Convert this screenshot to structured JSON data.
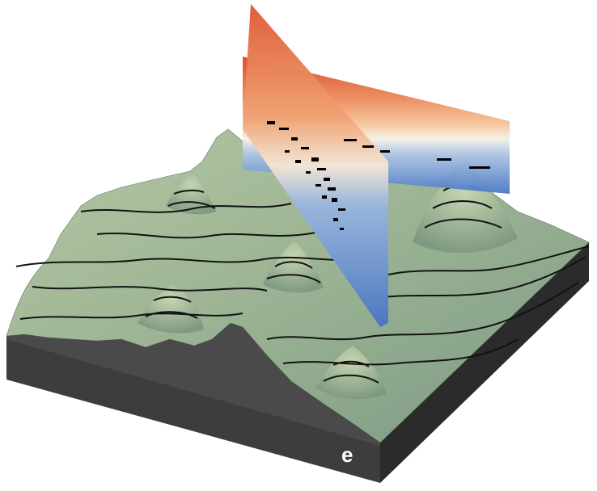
{
  "panel_label": "e",
  "colors": {
    "terrain_light": "#b4c7a2",
    "terrain_mid": "#93ab8c",
    "terrain_dark": "#6f8b75",
    "block_front": "#3d3d3d",
    "block_right": "#2c2c2c",
    "contour": "#111111",
    "curtain_top": "#d64a2c",
    "curtain_mid": "#f2b487",
    "curtain_light": "#f3f0e4",
    "curtain_bottom": "#4c7bc4",
    "label_text": "#ffffff"
  }
}
